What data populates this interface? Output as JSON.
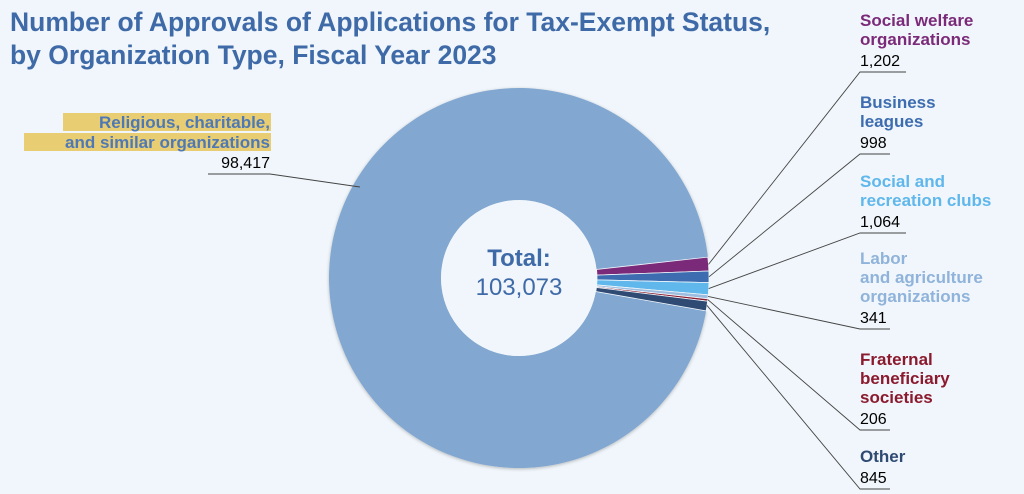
{
  "chart_data": {
    "type": "pie",
    "title": [
      "Number of Approvals of Applications for Tax-Exempt Status,",
      "by Organization Type, Fiscal Year 2023"
    ],
    "center_label": "Total:",
    "center_value": "103,073",
    "total": 103073,
    "slices": [
      {
        "name": [
          "Religious, charitable,",
          "and similar organizations"
        ],
        "value": 98417,
        "value_label": "98,417",
        "color": "#82a7d0",
        "label_color": "#4f79b4",
        "highlight": true
      },
      {
        "name": [
          "Social welfare",
          "organizations"
        ],
        "value": 1202,
        "value_label": "1,202",
        "color": "#7b2a79",
        "label_color": "#7b2a79"
      },
      {
        "name": [
          "Business",
          "leagues"
        ],
        "value": 998,
        "value_label": "998",
        "color": "#3d6db0",
        "label_color": "#3d6db0"
      },
      {
        "name": [
          "Social and",
          "recreation clubs"
        ],
        "value": 1064,
        "value_label": "1,064",
        "color": "#5fb7ec",
        "label_color": "#5fb7ec"
      },
      {
        "name": [
          "Labor",
          "and agriculture",
          "organizations"
        ],
        "value": 341,
        "value_label": "341",
        "color": "#9cbde0",
        "label_color": "#8fb3da"
      },
      {
        "name": [
          "Fraternal",
          "beneficiary",
          "societies"
        ],
        "value": 206,
        "value_label": "206",
        "color": "#8b1a2e",
        "label_color": "#8b1a2e"
      },
      {
        "name": [
          "Other"
        ],
        "value": 845,
        "value_label": "845",
        "color": "#2f4a73",
        "label_color": "#2f4a73"
      }
    ]
  }
}
